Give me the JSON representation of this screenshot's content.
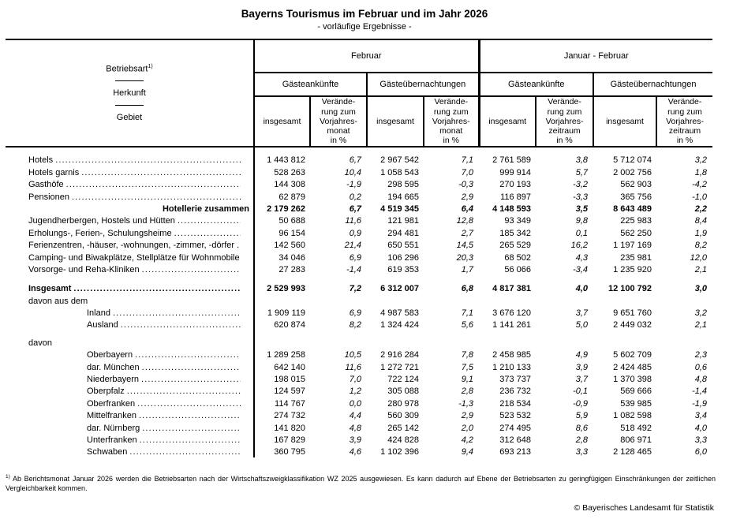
{
  "title": "Bayerns Tourismus im Februar und im Jahr 2026",
  "subtitle": "- vorläufige Ergebnisse -",
  "table": {
    "stub": {
      "line1": "Betriebsart",
      "marker": "1)",
      "line2": "Herkunft",
      "line3": "Gebiet"
    },
    "groups": [
      {
        "label": "Februar",
        "subgroups": [
          "Gästeankünfte",
          "Gästeübernachtungen"
        ],
        "total_label": "insgesamt",
        "change_label": "Verände-\nrung zum\nVorjahres-\nmonat\nin %"
      },
      {
        "label": "Januar - Februar",
        "subgroups": [
          "Gästeankünfte",
          "Gästeübernachtungen"
        ],
        "total_label": "insgesamt",
        "change_label": "Verände-\nrung zum\nVorjahres-\nzeitraum\nin %"
      }
    ],
    "rows": [
      {
        "label": "Hotels",
        "dots": true,
        "gap": 8,
        "values": [
          "1 443 812",
          "6,7",
          "2 967 542",
          "7,1",
          "2 761 589",
          "3,8",
          "5 712 074",
          "3,2"
        ]
      },
      {
        "label": "Hotels garnis",
        "dots": true,
        "values": [
          "528 263",
          "10,4",
          "1 058 543",
          "7,0",
          "999 914",
          "5,7",
          "2 002 756",
          "1,8"
        ]
      },
      {
        "label": "Gasthöfe",
        "dots": true,
        "values": [
          "144 308",
          "-1,9",
          "298 595",
          "-0,3",
          "270 193",
          "-3,2",
          "562 903",
          "-4,2"
        ]
      },
      {
        "label": "Pensionen",
        "dots": true,
        "values": [
          "62 879",
          "0,2",
          "194 665",
          "2,9",
          "116 897",
          "-3,3",
          "365 756",
          "-1,0"
        ]
      },
      {
        "label": "Hotellerie zusammen",
        "bold": true,
        "align": "right",
        "values": [
          "2 179 262",
          "6,7",
          "4 519 345",
          "6,4",
          "4 148 593",
          "3,5",
          "8 643 489",
          "2,2"
        ]
      },
      {
        "label": "Jugendherbergen, Hostels und Hütten",
        "dots": true,
        "values": [
          "50 688",
          "11,6",
          "121 981",
          "12,8",
          "93 349",
          "9,8",
          "225 983",
          "8,4"
        ]
      },
      {
        "label": "Erholungs-, Ferien-, Schulungsheime",
        "dots": true,
        "values": [
          "96 154",
          "0,9",
          "294 481",
          "2,7",
          "185 342",
          "0,1",
          "562 250",
          "1,9"
        ]
      },
      {
        "label": "Ferienzentren, -häuser, -wohnungen, -zimmer, -dörfer",
        "dots": true,
        "values": [
          "142 560",
          "21,4",
          "650 551",
          "14,5",
          "265 529",
          "16,2",
          "1 197 169",
          "8,2"
        ]
      },
      {
        "label": "Camping- und Biwakplätze, Stellplätze für Wohnmobile",
        "dots": true,
        "values": [
          "34 046",
          "6,9",
          "106 296",
          "20,3",
          "68 502",
          "4,3",
          "235 981",
          "12,0"
        ]
      },
      {
        "label": "Vorsorge- und Reha-Kliniken",
        "dots": true,
        "values": [
          "27 283",
          "-1,4",
          "619 353",
          "1,7",
          "56 066",
          "-3,4",
          "1 235 920",
          "2,1"
        ]
      },
      {
        "label": "Insgesamt",
        "bold": true,
        "dots": true,
        "gap": 9,
        "values": [
          "2 529 993",
          "7,2",
          "6 312 007",
          "6,8",
          "4 817 381",
          "4,0",
          "12 100 792",
          "3,0"
        ]
      },
      {
        "label": "davon aus dem",
        "section": true
      },
      {
        "label": "Inland",
        "indent": 1,
        "dots": true,
        "values": [
          "1 909 119",
          "6,9",
          "4 987 583",
          "7,1",
          "3 676 120",
          "3,7",
          "9 651 760",
          "3,2"
        ]
      },
      {
        "label": "Ausland",
        "indent": 1,
        "dots": true,
        "values": [
          "620 874",
          "8,2",
          "1 324 424",
          "5,6",
          "1 141 261",
          "5,0",
          "2 449 032",
          "2,1"
        ]
      },
      {
        "label": "davon",
        "section": true,
        "gap": 7
      },
      {
        "label": "Oberbayern",
        "indent": 1,
        "dots": true,
        "values": [
          "1 289 258",
          "10,5",
          "2 916 284",
          "7,8",
          "2 458 985",
          "4,9",
          "5 602 709",
          "2,3"
        ]
      },
      {
        "label": "dar. München",
        "indent": 1,
        "dots": true,
        "values": [
          "642 140",
          "11,6",
          "1 272 721",
          "7,5",
          "1 210 133",
          "3,9",
          "2 424 485",
          "0,6"
        ]
      },
      {
        "label": "Niederbayern",
        "indent": 1,
        "dots": true,
        "values": [
          "198 015",
          "7,0",
          "722 124",
          "9,1",
          "373 737",
          "3,7",
          "1 370 398",
          "4,8"
        ]
      },
      {
        "label": "Oberpfalz",
        "indent": 1,
        "dots": true,
        "values": [
          "124 597",
          "1,2",
          "305 088",
          "2,8",
          "236 732",
          "-0,1",
          "569 666",
          "-1,4"
        ]
      },
      {
        "label": "Oberfranken",
        "indent": 1,
        "dots": true,
        "values": [
          "114 767",
          "0,0",
          "280 978",
          "-1,3",
          "218 534",
          "-0,9",
          "539 985",
          "-1,9"
        ]
      },
      {
        "label": "Mittelfranken",
        "indent": 1,
        "dots": true,
        "values": [
          "274 732",
          "4,4",
          "560 309",
          "2,9",
          "523 532",
          "5,9",
          "1 082 598",
          "3,4"
        ]
      },
      {
        "label": "dar. Nürnberg",
        "indent": 1,
        "dots": true,
        "values": [
          "141 820",
          "4,8",
          "265 142",
          "2,0",
          "274 495",
          "8,6",
          "518 492",
          "4,0"
        ]
      },
      {
        "label": "Unterfranken",
        "indent": 1,
        "dots": true,
        "values": [
          "167 829",
          "3,9",
          "424 828",
          "4,2",
          "312 648",
          "2,8",
          "806 971",
          "3,3"
        ]
      },
      {
        "label": "Schwaben",
        "indent": 1,
        "dots": true,
        "values": [
          "360 795",
          "4,6",
          "1 102 396",
          "9,4",
          "693 213",
          "3,3",
          "2 128 465",
          "6,0"
        ]
      }
    ]
  },
  "footnote": {
    "marker": "1)",
    "text": " Ab Berichtsmonat Januar 2026 werden die Betriebsarten nach der Wirtschaftszweigklassifikation WZ 2025 ausgewiesen. Es kann dadurch auf Ebene der Betriebsarten zu geringfügigen Einschränkungen der zeitlichen Vergleichbarkeit kommen."
  },
  "copyright": "© Bayerisches Landesamt für Statistik",
  "colors": {
    "text": "#000000",
    "background": "#ffffff",
    "border": "#000000"
  }
}
